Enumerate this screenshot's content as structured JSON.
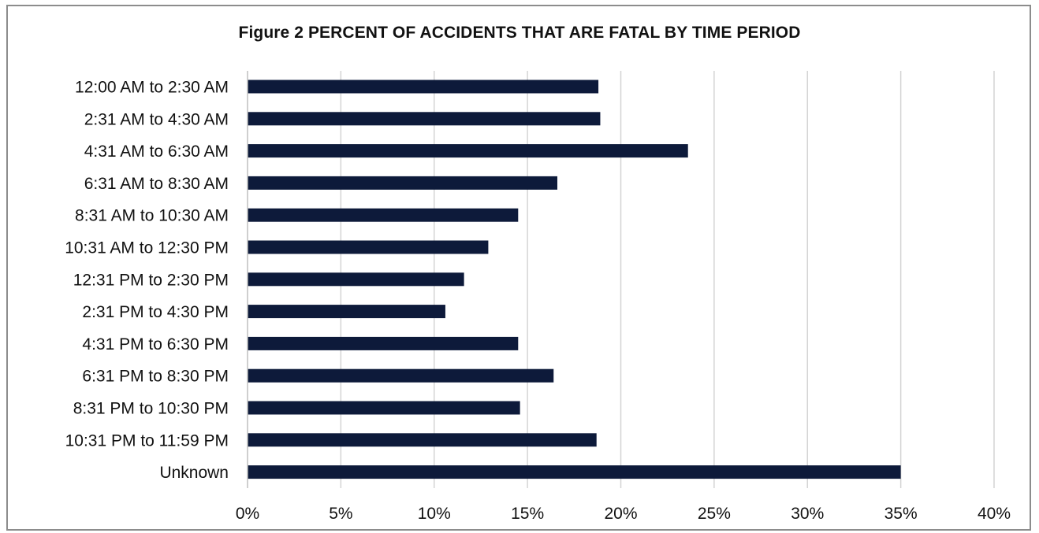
{
  "chart_data": {
    "type": "bar",
    "orientation": "horizontal",
    "title": "Figure 2  PERCENT OF ACCIDENTS THAT ARE FATAL BY TIME PERIOD",
    "xlabel": "",
    "ylabel": "",
    "categories": [
      "12:00 AM to 2:30 AM",
      "2:31 AM to 4:30 AM",
      "4:31 AM to 6:30 AM",
      "6:31 AM to 8:30 AM",
      "8:31 AM to 10:30 AM",
      "10:31 AM to 12:30 PM",
      "12:31 PM to 2:30 PM",
      "2:31 PM to 4:30 PM",
      "4:31 PM to 6:30 PM",
      "6:31 PM to 8:30 PM",
      "8:31 PM to 10:30 PM",
      "10:31 PM to 11:59 PM",
      "Unknown"
    ],
    "values": [
      18.8,
      18.9,
      23.6,
      16.6,
      14.5,
      12.9,
      11.6,
      10.6,
      14.5,
      16.4,
      14.6,
      18.7,
      35.0
    ],
    "xlim": [
      0,
      40
    ],
    "ticks": [
      0,
      5,
      10,
      15,
      20,
      25,
      30,
      35,
      40
    ],
    "tick_labels": [
      "0%",
      "5%",
      "10%",
      "15%",
      "20%",
      "25%",
      "30%",
      "35%",
      "40%"
    ],
    "grid": "vertical",
    "legend": "none",
    "bar_color": "#0d1a3a",
    "grid_color": "#d4d4d4"
  }
}
